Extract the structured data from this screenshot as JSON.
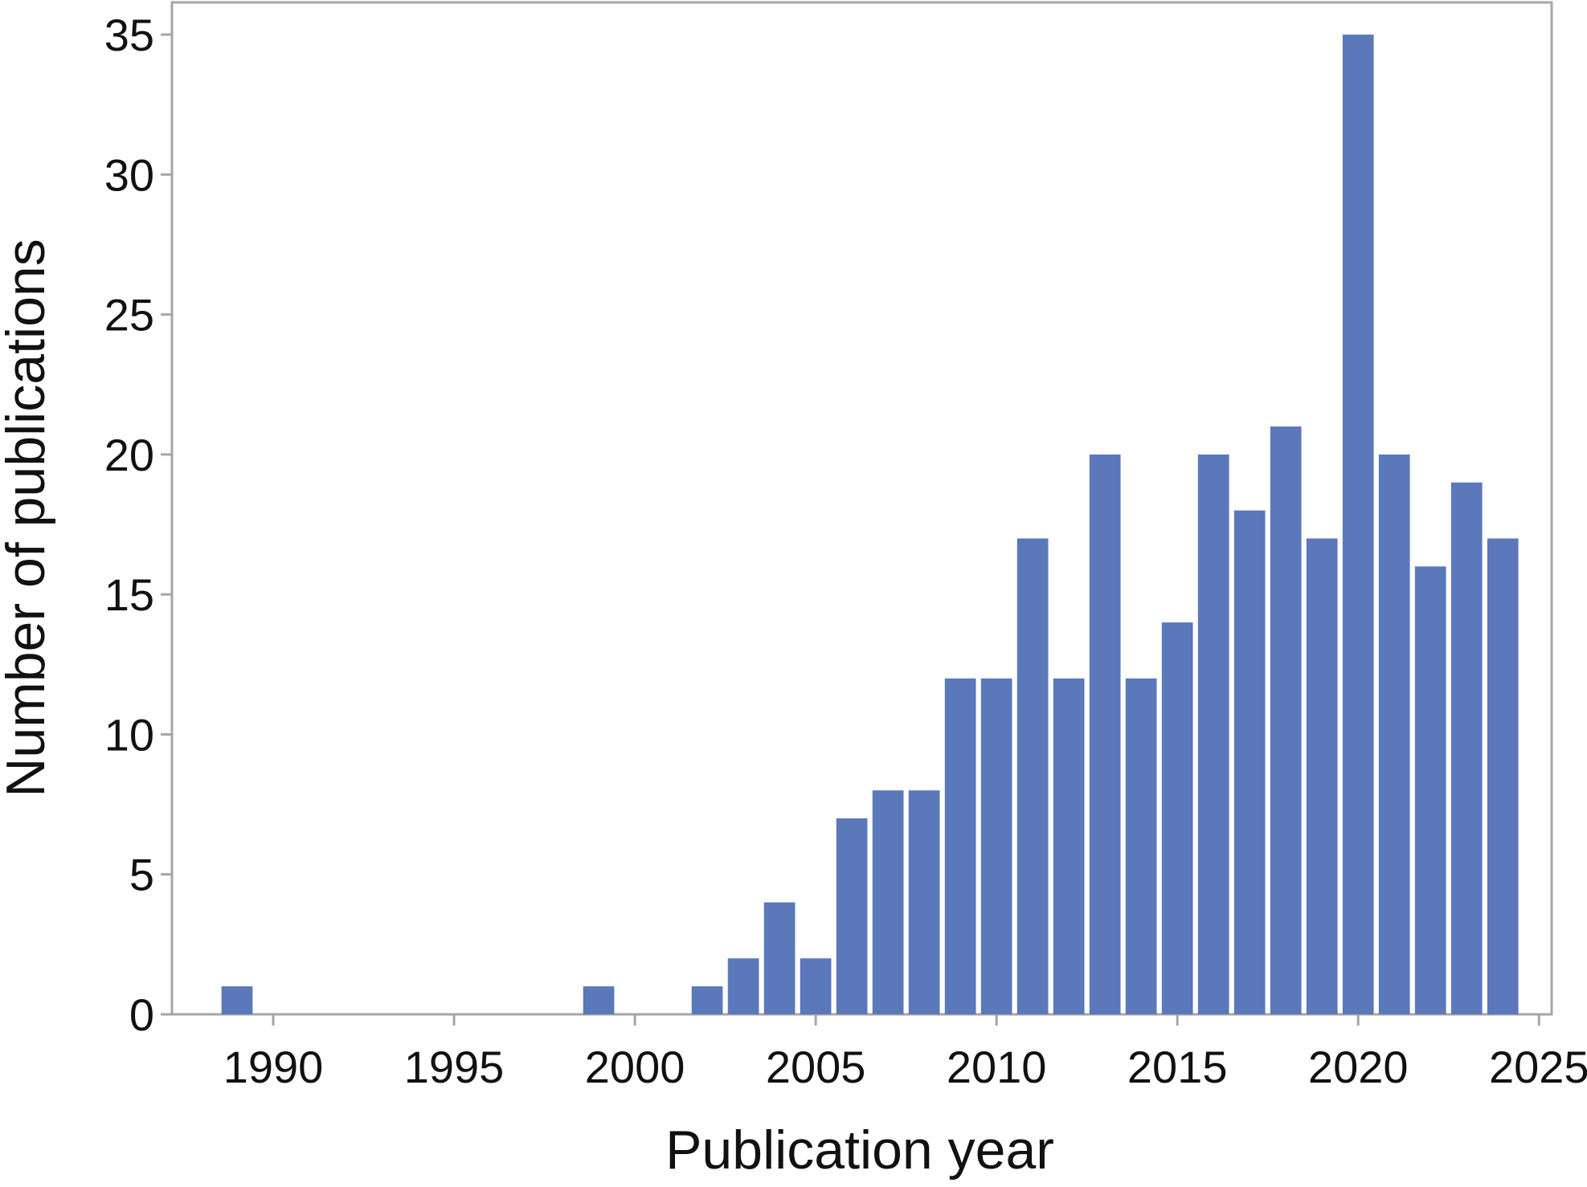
{
  "chart_data": {
    "type": "bar",
    "x_label": "Publication year",
    "y_label": "Number of publications",
    "x": [
      1989,
      1999,
      2002,
      2003,
      2004,
      2005,
      2006,
      2007,
      2008,
      2009,
      2010,
      2011,
      2012,
      2013,
      2014,
      2015,
      2016,
      2017,
      2018,
      2019,
      2020,
      2021,
      2022,
      2023,
      2024
    ],
    "values": [
      1,
      1,
      1,
      2,
      4,
      2,
      7,
      8,
      8,
      12,
      12,
      17,
      12,
      20,
      12,
      14,
      20,
      18,
      21,
      17,
      35,
      20,
      16,
      19,
      17
    ],
    "color": "#5b78bb",
    "xlim": [
      1987.2,
      2025.35
    ],
    "xticks": [
      1990,
      1995,
      2000,
      2005,
      2010,
      2015,
      2020,
      2025
    ],
    "ylim": [
      0,
      36.15
    ],
    "yticks": [
      0,
      5,
      10,
      15,
      20,
      25,
      30,
      35
    ],
    "grid": false
  }
}
